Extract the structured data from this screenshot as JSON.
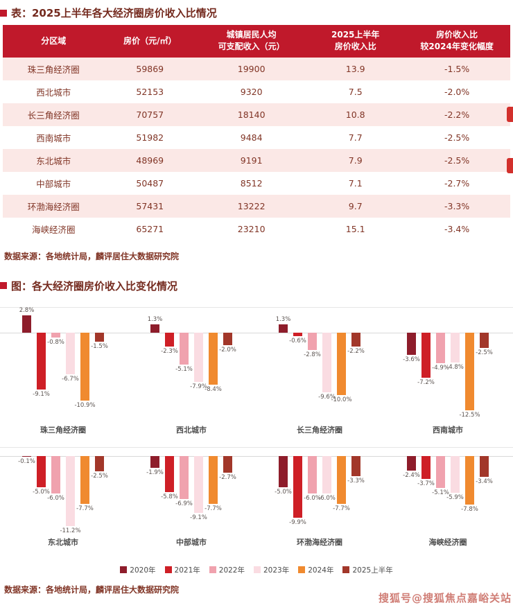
{
  "page": {
    "table_title": "表：2025上半年各大经济圈房价收入比情况",
    "table_source": "数据来源：各地统计局，麟评居住大数据研究院",
    "chart_title": "图：各大经济圈房价收入比变化情况",
    "chart_source": "数据来源：各地统计局，麟评居住大数据研究院",
    "watermark": "搜狐号@搜狐焦点嘉峪关站"
  },
  "colors": {
    "header_red": "#C0192B",
    "row_pink": "#FBE8E6",
    "series": [
      "#8E1D2B",
      "#CE1F26",
      "#F0A2AE",
      "#FADCE2",
      "#F08A2F",
      "#A2372A"
    ]
  },
  "chart_data": [
    {
      "type": "table",
      "title": "表：2025上半年各大经济圈房价收入比情况",
      "columns": [
        "分区域",
        "房价（元/㎡）",
        "城镇居民人均可支配收入（元）",
        "2025上半年房价收入比",
        "房价收入比较2024年变化幅度"
      ],
      "columns_lines": [
        [
          "分区域"
        ],
        [
          "房价（元/㎡）"
        ],
        [
          "城镇居民人均",
          "可支配收入（元）"
        ],
        [
          "2025上半年",
          "房价收入比"
        ],
        [
          "房价收入比",
          "较2024年变化幅度"
        ]
      ],
      "rows": [
        [
          "珠三角经济圈",
          "59869",
          "19900",
          "13.9",
          "-1.5%"
        ],
        [
          "西北城市",
          "52153",
          "9320",
          "7.5",
          "-2.0%"
        ],
        [
          "长三角经济圈",
          "70757",
          "18140",
          "10.8",
          "-2.2%"
        ],
        [
          "西南城市",
          "51982",
          "9484",
          "7.7",
          "-2.5%"
        ],
        [
          "东北城市",
          "48969",
          "9191",
          "7.9",
          "-2.5%"
        ],
        [
          "中部城市",
          "50487",
          "8512",
          "7.1",
          "-2.7%"
        ],
        [
          "环渤海经济圈",
          "57431",
          "13222",
          "9.7",
          "-3.3%"
        ],
        [
          "海峡经济圈",
          "65271",
          "23210",
          "15.1",
          "-3.4%"
        ]
      ]
    },
    {
      "type": "bar",
      "title": "图：各大经济圈房价收入比变化情况",
      "unit": "%",
      "ylim": [
        -13,
        3
      ],
      "legend_position": "bottom",
      "series_labels": [
        "2020年",
        "2021年",
        "2022年",
        "2023年",
        "2024年",
        "2025上半年"
      ],
      "groups": [
        {
          "name": "珠三角经济圈",
          "values": [
            2.8,
            -9.1,
            -0.8,
            -6.7,
            -10.9,
            -1.5
          ],
          "labels": [
            "2.8%",
            "-9.1%",
            "-0.8%",
            "-6.7%",
            "-10.9%",
            "-1.5%"
          ]
        },
        {
          "name": "西北城市",
          "values": [
            1.3,
            -2.3,
            -5.1,
            -7.9,
            -8.4,
            -2.0
          ],
          "labels": [
            "1.3%",
            "-2.3%",
            "-5.1%",
            "-7.9%",
            "-8.4%",
            "-2.0%"
          ]
        },
        {
          "name": "长三角经济圈",
          "values": [
            1.3,
            -0.6,
            -2.8,
            -9.6,
            -10.0,
            -2.2
          ],
          "labels": [
            "1.3%",
            "-0.6%",
            "-2.8%",
            "-9.6%",
            "-10.0%",
            "-2.2%"
          ]
        },
        {
          "name": "西南城市",
          "values": [
            -3.6,
            -7.2,
            -4.9,
            -4.8,
            -12.5,
            -2.5
          ],
          "labels": [
            "-3.6%",
            "-7.2%",
            "-4.9%",
            "-4.8%",
            "-12.5%",
            "-2.5%"
          ]
        },
        {
          "name": "东北城市",
          "values": [
            -0.1,
            -5.0,
            -6.0,
            -11.2,
            -7.7,
            -2.5
          ],
          "labels": [
            "-0.1%",
            "-5.0%",
            "-6.0%",
            "-11.2%",
            "-7.7%",
            "-2.5%"
          ]
        },
        {
          "name": "中部城市",
          "values": [
            -1.9,
            -5.8,
            -6.9,
            -9.1,
            -7.7,
            -2.7
          ],
          "labels": [
            "-1.9%",
            "-5.8%",
            "-6.9%",
            "-9.1%",
            "-7.7%",
            "-2.7%"
          ]
        },
        {
          "name": "环渤海经济圈",
          "values": [
            -5.0,
            -9.9,
            -6.0,
            -6.0,
            -7.7,
            -3.3
          ],
          "labels": [
            "-5.0%",
            "-9.9%",
            "-6.0%",
            "-6.0%",
            "-7.7%",
            "-3.3%"
          ]
        },
        {
          "name": "海峡经济圈",
          "values": [
            -2.4,
            -3.7,
            -5.1,
            -5.9,
            -7.8,
            -3.4
          ],
          "labels": [
            "-2.4%",
            "-3.7%",
            "-5.1%",
            "-5.9%",
            "-7.8%",
            "-3.4%"
          ]
        }
      ]
    }
  ]
}
